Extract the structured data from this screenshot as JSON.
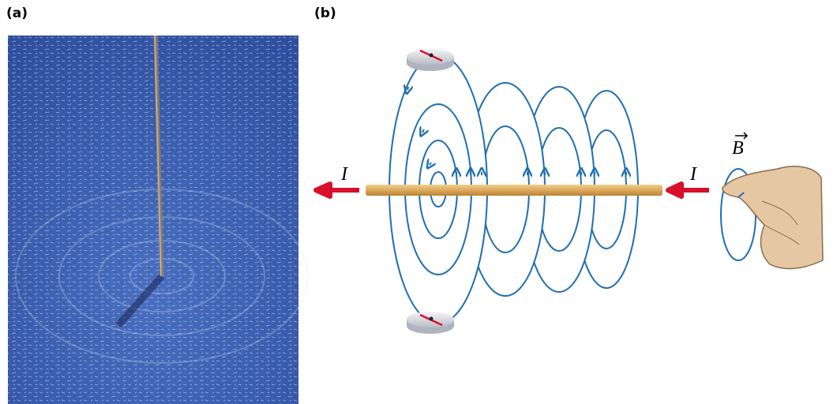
{
  "panels": [
    {
      "label": "(a)"
    },
    {
      "label": "(b)",
      "current_left": "I",
      "current_right": "I",
      "field": "B"
    }
  ]
}
